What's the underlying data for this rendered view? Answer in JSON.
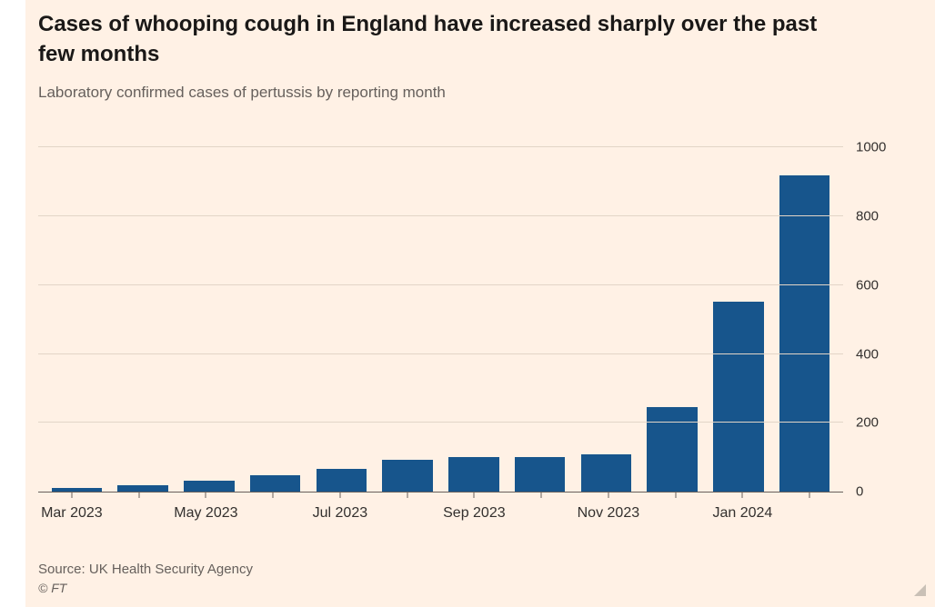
{
  "header": {
    "title": "Cases of whooping cough in England have increased sharply over the past few months",
    "subtitle": "Laboratory confirmed cases of pertussis by reporting month"
  },
  "footer": {
    "source": "Source: UK Health Security Agency",
    "copyright": "© FT"
  },
  "colors": {
    "background": "#FFF1E5",
    "bar": "#17558C",
    "gridline": "#E2D5C7",
    "axis": "#66605C",
    "title_text": "#1A1817",
    "muted_text": "#66605C",
    "tick_text": "#33302E"
  },
  "chart_data": {
    "type": "bar",
    "title": "Cases of whooping cough in England have increased sharply over the past few months",
    "subtitle": "Laboratory confirmed cases of pertussis by reporting month",
    "categories": [
      "Mar 2023",
      "Apr 2023",
      "May 2023",
      "Jun 2023",
      "Jul 2023",
      "Aug 2023",
      "Sep 2023",
      "Oct 2023",
      "Nov 2023",
      "Dec 2023",
      "Jan 2024",
      "Feb 2024"
    ],
    "values": [
      10,
      19,
      31,
      49,
      67,
      92,
      100,
      100,
      108,
      245,
      553,
      918
    ],
    "x_tick_labels": [
      "Mar 2023",
      "May 2023",
      "Jul 2023",
      "Sep 2023",
      "Nov 2023",
      "Jan 2024"
    ],
    "label_every": 2,
    "y_ticks": [
      0,
      200,
      400,
      600,
      800,
      1000
    ],
    "ylim": [
      0,
      1000
    ],
    "xlabel": "",
    "ylabel": "",
    "grid": true,
    "y_axis_side": "right",
    "legend": "none",
    "bar_color": "#17558C"
  }
}
